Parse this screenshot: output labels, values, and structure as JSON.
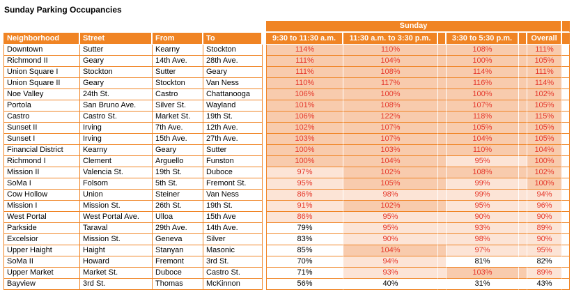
{
  "title": "Sunday Parking Occupancies",
  "table": {
    "group_header": "Sunday",
    "columns": [
      "Neighborhood",
      "Street",
      "From",
      "To",
      "9:30 to 11:30 a.m.",
      "11:30 a.m. to 3:30 p.m.",
      "3:30 to 5:30 p.m.",
      "Overall"
    ],
    "rows": [
      {
        "neighborhood": "Downtown",
        "street": "Sutter",
        "from": "Kearny",
        "to": "Stockton",
        "values": [
          "114%",
          "110%",
          "108%",
          "111%"
        ]
      },
      {
        "neighborhood": "Richmond II",
        "street": "Geary",
        "from": "14th Ave.",
        "to": "28th Ave.",
        "values": [
          "111%",
          "104%",
          "100%",
          "105%"
        ]
      },
      {
        "neighborhood": "Union Square I",
        "street": "Stockton",
        "from": "Sutter",
        "to": "Geary",
        "values": [
          "111%",
          "108%",
          "114%",
          "111%"
        ]
      },
      {
        "neighborhood": "Union Square II",
        "street": "Geary",
        "from": "Stockton",
        "to": "Van Ness",
        "values": [
          "110%",
          "117%",
          "116%",
          "114%"
        ]
      },
      {
        "neighborhood": "Noe Valley",
        "street": "24th St.",
        "from": "Castro",
        "to": "Chattanooga",
        "values": [
          "106%",
          "100%",
          "100%",
          "102%"
        ]
      },
      {
        "neighborhood": "Portola",
        "street": "San Bruno Ave.",
        "from": "Silver St.",
        "to": "Wayland",
        "values": [
          "101%",
          "108%",
          "107%",
          "105%"
        ]
      },
      {
        "neighborhood": "Castro",
        "street": "Castro St.",
        "from": "Market St.",
        "to": "19th St.",
        "values": [
          "106%",
          "122%",
          "118%",
          "115%"
        ]
      },
      {
        "neighborhood": "Sunset II",
        "street": "Irving",
        "from": "7th Ave.",
        "to": "12th Ave.",
        "values": [
          "102%",
          "107%",
          "105%",
          "105%"
        ]
      },
      {
        "neighborhood": "Sunset I",
        "street": "Irving",
        "from": "15th Ave.",
        "to": "27th Ave.",
        "values": [
          "103%",
          "107%",
          "104%",
          "105%"
        ]
      },
      {
        "neighborhood": "Financial District",
        "street": "Kearny",
        "from": "Geary",
        "to": "Sutter",
        "values": [
          "100%",
          "103%",
          "110%",
          "104%"
        ]
      },
      {
        "neighborhood": "Richmond I",
        "street": "Clement",
        "from": "Arguello",
        "to": "Funston",
        "values": [
          "100%",
          "104%",
          "95%",
          "100%"
        ]
      },
      {
        "neighborhood": "Mission II",
        "street": "Valencia St.",
        "from": "19th St.",
        "to": "Duboce",
        "values": [
          "97%",
          "102%",
          "108%",
          "102%"
        ]
      },
      {
        "neighborhood": "SoMa I",
        "street": "Folsom",
        "from": "5th St.",
        "to": "Fremont St.",
        "values": [
          "95%",
          "105%",
          "99%",
          "100%"
        ]
      },
      {
        "neighborhood": "Cow Hollow",
        "street": "Union",
        "from": "Steiner",
        "to": "Van Ness",
        "values": [
          "86%",
          "98%",
          "99%",
          "94%"
        ]
      },
      {
        "neighborhood": "Mission I",
        "street": "Mission St.",
        "from": "26th St.",
        "to": "19th St.",
        "values": [
          "91%",
          "102%",
          "95%",
          "96%"
        ]
      },
      {
        "neighborhood": "West Portal",
        "street": "West Portal Ave.",
        "from": "Ulloa",
        "to": "15th Ave",
        "values": [
          "86%",
          "95%",
          "90%",
          "90%"
        ]
      },
      {
        "neighborhood": "Parkside",
        "street": "Taraval",
        "from": "29th Ave.",
        "to": "14th Ave.",
        "values": [
          "79%",
          "95%",
          "93%",
          "89%"
        ]
      },
      {
        "neighborhood": "Excelsior",
        "street": "Mission St.",
        "from": "Geneva",
        "to": "Silver",
        "values": [
          "83%",
          "90%",
          "98%",
          "90%"
        ]
      },
      {
        "neighborhood": "Upper Haight",
        "street": "Haight",
        "from": "Stanyan",
        "to": "Masonic",
        "values": [
          "85%",
          "104%",
          "97%",
          "95%"
        ]
      },
      {
        "neighborhood": "SoMa II",
        "street": "Howard",
        "from": "Fremont",
        "to": "3rd St.",
        "values": [
          "70%",
          "94%",
          "81%",
          "82%"
        ]
      },
      {
        "neighborhood": "Upper Market",
        "street": "Market St.",
        "from": "Duboce",
        "to": "Castro St.",
        "values": [
          "71%",
          "93%",
          "103%",
          "89%"
        ]
      },
      {
        "neighborhood": "Bayview",
        "street": "3rd St.",
        "from": "Thomas",
        "to": "McKinnon",
        "values": [
          "56%",
          "40%",
          "31%",
          "43%"
        ]
      }
    ],
    "conditional_format": {
      "dark_fill_red_text_min_percent": 100,
      "light_fill_red_text_min_percent": 86,
      "no_fill_black_text_below_percent": 86
    }
  },
  "colors": {
    "header_orange": "#F08424",
    "border_orange": "#F08424",
    "fill_high": "#F8CBAD",
    "fill_mid": "#FCE4D6",
    "fill_low": "#FFFFFF",
    "text_red": "#E5382B",
    "text_black": "#000000",
    "header_text": "#FFFFFF"
  }
}
